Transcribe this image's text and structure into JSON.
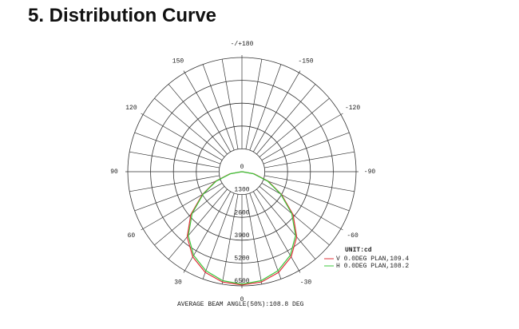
{
  "page_title": "5. Distribution Curve",
  "chart_data": {
    "type": "polar",
    "x": [
      -90,
      -80,
      -70,
      -60,
      -50,
      -40,
      -30,
      -20,
      -10,
      0,
      10,
      20,
      30,
      40,
      50,
      60,
      70,
      80,
      90
    ],
    "series": [
      {
        "name": "V 0.0DEG PLAN,109.4",
        "color": "#e0303a",
        "values": [
          0,
          700,
          1600,
          2600,
          3800,
          4850,
          5600,
          6100,
          6380,
          6450,
          6380,
          6100,
          5600,
          4850,
          3800,
          2600,
          1600,
          700,
          0
        ]
      },
      {
        "name": "H 0.0DEG PLAN,108.2",
        "color": "#3cc83c",
        "values": [
          0,
          650,
          1550,
          2550,
          3700,
          4750,
          5500,
          6000,
          6300,
          6400,
          6300,
          6000,
          5500,
          4750,
          3700,
          2550,
          1550,
          650,
          0
        ]
      }
    ],
    "rlim": [
      0,
      6500
    ],
    "rticks": [
      0,
      1300,
      2600,
      3900,
      5200,
      6500
    ],
    "angle_ticks": [
      0,
      30,
      60,
      90,
      120,
      150,
      {
        "value": 180,
        "label": "-/+180"
      },
      -150,
      -120,
      -90,
      -60,
      -30
    ],
    "unit_label": "UNIT:cd",
    "footer": "AVERAGE BEAM ANGLE(50%):108.8 DEG"
  }
}
